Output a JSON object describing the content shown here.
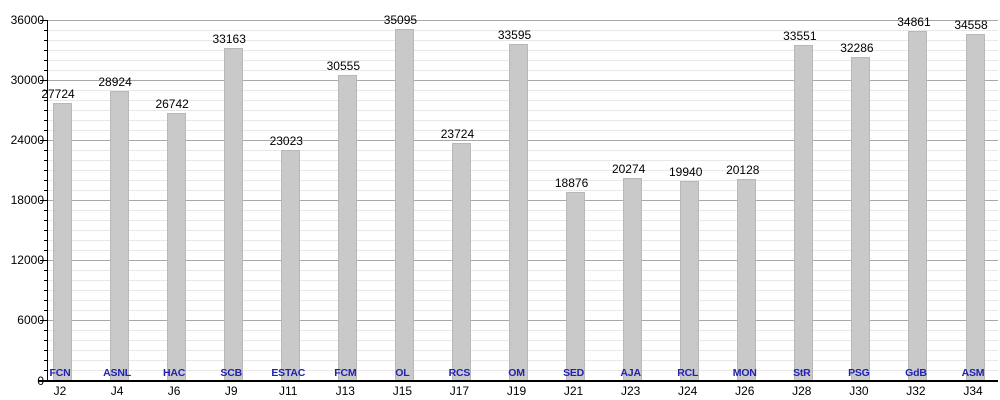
{
  "chart_data": {
    "type": "bar",
    "title": "",
    "xlabel": "",
    "ylabel": "",
    "categories": [
      "J2",
      "J4",
      "J6",
      "J9",
      "J11",
      "J13",
      "J15",
      "J17",
      "J19",
      "J21",
      "J23",
      "J24",
      "J26",
      "J28",
      "J30",
      "J32",
      "J34"
    ],
    "bar_labels": [
      "FCN",
      "ASNL",
      "HAC",
      "SCB",
      "ESTAC",
      "FCM",
      "OL",
      "RCS",
      "OM",
      "SED",
      "AJA",
      "RCL",
      "MON",
      "StR",
      "PSG",
      "GdB",
      "ASM"
    ],
    "values": [
      27724,
      28924,
      26742,
      33163,
      23023,
      30555,
      35095,
      23724,
      33595,
      18876,
      20274,
      19940,
      20128,
      33551,
      32286,
      34861,
      34558
    ],
    "ylim": [
      0,
      36000
    ],
    "y_major_ticks": [
      0,
      6000,
      12000,
      18000,
      24000,
      30000,
      36000
    ],
    "y_minor_step": 1000,
    "grid": "on",
    "legend": "none"
  },
  "colors": {
    "background": "#ffffff",
    "bar_fill": "#c9c9c9",
    "bar_border": "#b8b8b8",
    "major_grid": "#a8a8a8",
    "minor_grid": "#e8e8e8",
    "axis": "#000000",
    "value_label": "#000000",
    "team_label": "#2121b2",
    "tick_label": "#000000"
  }
}
